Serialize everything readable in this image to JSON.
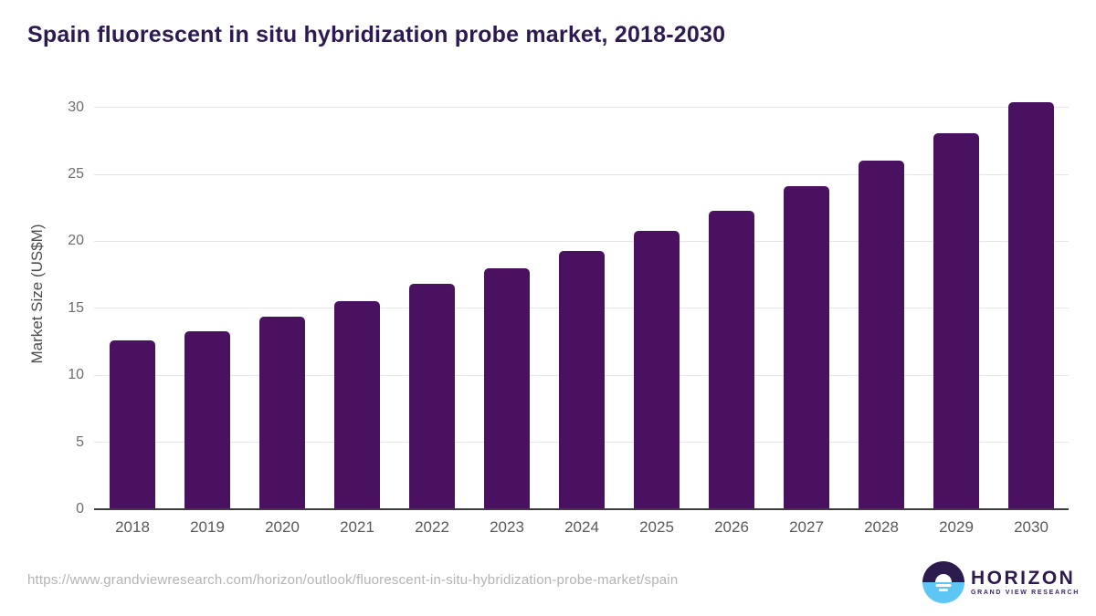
{
  "chart_data": {
    "type": "bar",
    "title": "Spain fluorescent in situ hybridization probe market, 2018-2030",
    "categories": [
      "2018",
      "2019",
      "2020",
      "2021",
      "2022",
      "2023",
      "2024",
      "2025",
      "2026",
      "2027",
      "2028",
      "2029",
      "2030"
    ],
    "values": [
      12.6,
      13.3,
      14.4,
      15.5,
      16.8,
      18.0,
      19.3,
      20.8,
      22.3,
      24.1,
      26.0,
      28.1,
      30.4
    ],
    "xlabel": "",
    "ylabel": "Market Size (US$M)",
    "ylim": [
      0,
      31
    ],
    "yticks": [
      0,
      5,
      10,
      15,
      20,
      25,
      30
    ],
    "grid": true,
    "legend_position": "none",
    "bar_color": "#4a1160"
  },
  "footer": {
    "source_url": "https://www.grandviewresearch.com/horizon/outlook/fluorescent-in-situ-hybridization-probe-market/spain",
    "logo_name": "HORIZON",
    "logo_tagline": "GRAND VIEW RESEARCH"
  },
  "colors": {
    "title_text": "#2e1a52",
    "bar": "#4a1160",
    "gridline": "#e6e6e6",
    "axis_line": "#3d3d3d",
    "y_tick_text": "#6e6e6e",
    "x_tick_text": "#58595b",
    "y_axis_title_text": "#4c4c4c",
    "source_url_text": "#b3b3b3",
    "logo_purple": "#2e1a4e",
    "logo_blue": "#5ec6f2"
  }
}
